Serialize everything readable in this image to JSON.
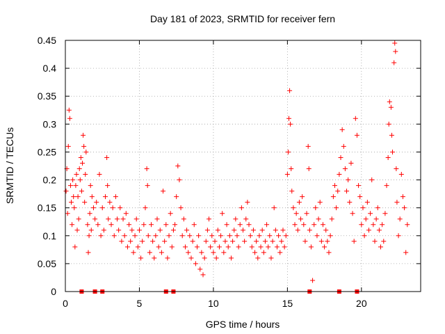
{
  "chart_data": {
    "type": "scatter",
    "title": "Day 181 of 2023, SRMTID for receiver fern",
    "xlabel": "GPS time / hours",
    "ylabel": "SRMTID / TECUs",
    "xlim": [
      0,
      24
    ],
    "ylim": [
      0,
      0.45
    ],
    "x_ticks": [
      {
        "value": 0,
        "label": "0"
      },
      {
        "value": 5,
        "label": "5"
      },
      {
        "value": 10,
        "label": "10"
      },
      {
        "value": 15,
        "label": "15"
      },
      {
        "value": 20,
        "label": "20"
      }
    ],
    "y_ticks": [
      {
        "value": 0,
        "label": "0"
      },
      {
        "value": 0.05,
        "label": "0.05"
      },
      {
        "value": 0.1,
        "label": "0.1"
      },
      {
        "value": 0.15,
        "label": "0.15"
      },
      {
        "value": 0.2,
        "label": "0.2"
      },
      {
        "value": 0.25,
        "label": "0.25"
      },
      {
        "value": 0.3,
        "label": "0.3"
      },
      {
        "value": 0.35,
        "label": "0.35"
      },
      {
        "value": 0.4,
        "label": "0.4"
      },
      {
        "value": 0.45,
        "label": "0.45"
      }
    ],
    "grid": true,
    "marker": "plus",
    "color": "#ff0000",
    "series": [
      {
        "name": "SRMTID",
        "points": [
          [
            0.05,
            0.18
          ],
          [
            0.1,
            0.22
          ],
          [
            0.15,
            0.14
          ],
          [
            0.2,
            0.26
          ],
          [
            0.25,
            0.325
          ],
          [
            0.3,
            0.31
          ],
          [
            0.35,
            0.19
          ],
          [
            0.4,
            0.16
          ],
          [
            0.45,
            0.12
          ],
          [
            0.5,
            0.2
          ],
          [
            0.55,
            0.17
          ],
          [
            0.6,
            0.15
          ],
          [
            0.65,
            0.08
          ],
          [
            0.7,
            0.19
          ],
          [
            0.75,
            0.21
          ],
          [
            0.8,
            0.11
          ],
          [
            0.85,
            0.17
          ],
          [
            0.9,
            0.13
          ],
          [
            0.95,
            0.22
          ],
          [
            1.0,
            0.2
          ],
          [
            1.05,
            0.24
          ],
          [
            1.1,
            0.18
          ],
          [
            1.15,
            0.23
          ],
          [
            1.2,
            0.28
          ],
          [
            1.25,
            0.26
          ],
          [
            1.3,
            0.16
          ],
          [
            1.35,
            0.21
          ],
          [
            1.4,
            0.25
          ],
          [
            1.5,
            0.12
          ],
          [
            1.55,
            0.07
          ],
          [
            1.6,
            0.1
          ],
          [
            1.65,
            0.14
          ],
          [
            1.7,
            0.19
          ],
          [
            1.75,
            0.11
          ],
          [
            1.8,
            0.17
          ],
          [
            1.9,
            0.15
          ],
          [
            2.0,
            0.13
          ],
          [
            2.1,
            0.16
          ],
          [
            2.2,
            0.12
          ],
          [
            2.3,
            0.21
          ],
          [
            2.4,
            0.1
          ],
          [
            2.5,
            0.15
          ],
          [
            2.6,
            0.11
          ],
          [
            2.7,
            0.17
          ],
          [
            2.8,
            0.24
          ],
          [
            2.85,
            0.19
          ],
          [
            2.9,
            0.13
          ],
          [
            3.0,
            0.16
          ],
          [
            3.1,
            0.12
          ],
          [
            3.2,
            0.15
          ],
          [
            3.3,
            0.1
          ],
          [
            3.4,
            0.17
          ],
          [
            3.5,
            0.13
          ],
          [
            3.6,
            0.11
          ],
          [
            3.7,
            0.15
          ],
          [
            3.8,
            0.09
          ],
          [
            3.9,
            0.13
          ],
          [
            4.0,
            0.1
          ],
          [
            4.1,
            0.14
          ],
          [
            4.2,
            0.08
          ],
          [
            4.3,
            0.12
          ],
          [
            4.4,
            0.09
          ],
          [
            4.5,
            0.11
          ],
          [
            4.6,
            0.07
          ],
          [
            4.7,
            0.1
          ],
          [
            4.8,
            0.13
          ],
          [
            4.9,
            0.08
          ],
          [
            5.0,
            0.11
          ],
          [
            5.1,
            0.06
          ],
          [
            5.2,
            0.09
          ],
          [
            5.3,
            0.12
          ],
          [
            5.4,
            0.15
          ],
          [
            5.5,
            0.22
          ],
          [
            5.55,
            0.19
          ],
          [
            5.6,
            0.1
          ],
          [
            5.7,
            0.07
          ],
          [
            5.8,
            0.12
          ],
          [
            5.9,
            0.09
          ],
          [
            6.0,
            0.06
          ],
          [
            6.1,
            0.1
          ],
          [
            6.2,
            0.13
          ],
          [
            6.3,
            0.08
          ],
          [
            6.4,
            0.11
          ],
          [
            6.5,
            0.07
          ],
          [
            6.6,
            0.18
          ],
          [
            6.7,
            0.09
          ],
          [
            6.8,
            0.12
          ],
          [
            6.9,
            0.06
          ],
          [
            7.0,
            0.1
          ],
          [
            7.1,
            0.14
          ],
          [
            7.2,
            0.08
          ],
          [
            7.3,
            0.11
          ],
          [
            7.4,
            0.12
          ],
          [
            7.5,
            0.17
          ],
          [
            7.6,
            0.225
          ],
          [
            7.7,
            0.2
          ],
          [
            7.8,
            0.15
          ],
          [
            7.9,
            0.1
          ],
          [
            8.0,
            0.13
          ],
          [
            8.1,
            0.08
          ],
          [
            8.2,
            0.11
          ],
          [
            8.3,
            0.07
          ],
          [
            8.4,
            0.1
          ],
          [
            8.5,
            0.06
          ],
          [
            8.6,
            0.09
          ],
          [
            8.7,
            0.12
          ],
          [
            8.8,
            0.05
          ],
          [
            8.9,
            0.08
          ],
          [
            9.0,
            0.1
          ],
          [
            9.1,
            0.04
          ],
          [
            9.2,
            0.07
          ],
          [
            9.3,
            0.03
          ],
          [
            9.4,
            0.06
          ],
          [
            9.5,
            0.09
          ],
          [
            9.6,
            0.11
          ],
          [
            9.7,
            0.13
          ],
          [
            9.8,
            0.08
          ],
          [
            9.9,
            0.1
          ],
          [
            10.0,
            0.07
          ],
          [
            10.1,
            0.09
          ],
          [
            10.2,
            0.06
          ],
          [
            10.3,
            0.11
          ],
          [
            10.4,
            0.08
          ],
          [
            10.5,
            0.1
          ],
          [
            10.6,
            0.14
          ],
          [
            10.7,
            0.07
          ],
          [
            10.8,
            0.09
          ],
          [
            10.9,
            0.12
          ],
          [
            11.0,
            0.08
          ],
          [
            11.1,
            0.1
          ],
          [
            11.2,
            0.06
          ],
          [
            11.3,
            0.09
          ],
          [
            11.4,
            0.11
          ],
          [
            11.5,
            0.13
          ],
          [
            11.6,
            0.1
          ],
          [
            11.7,
            0.08
          ],
          [
            11.8,
            0.12
          ],
          [
            11.9,
            0.15
          ],
          [
            12.0,
            0.11
          ],
          [
            12.1,
            0.09
          ],
          [
            12.2,
            0.13
          ],
          [
            12.3,
            0.16
          ],
          [
            12.4,
            0.12
          ],
          [
            12.5,
            0.1
          ],
          [
            12.6,
            0.08
          ],
          [
            12.7,
            0.11
          ],
          [
            12.8,
            0.07
          ],
          [
            12.9,
            0.09
          ],
          [
            13.0,
            0.06
          ],
          [
            13.1,
            0.1
          ],
          [
            13.2,
            0.08
          ],
          [
            13.3,
            0.11
          ],
          [
            13.4,
            0.07
          ],
          [
            13.5,
            0.09
          ],
          [
            13.6,
            0.12
          ],
          [
            13.7,
            0.08
          ],
          [
            13.8,
            0.1
          ],
          [
            13.9,
            0.06
          ],
          [
            14.0,
            0.09
          ],
          [
            14.1,
            0.15
          ],
          [
            14.2,
            0.11
          ],
          [
            14.3,
            0.08
          ],
          [
            14.4,
            0.1
          ],
          [
            14.5,
            0.07
          ],
          [
            14.6,
            0.09
          ],
          [
            14.7,
            0.11
          ],
          [
            14.8,
            0.08
          ],
          [
            14.9,
            0.1
          ],
          [
            15.0,
            0.21
          ],
          [
            15.05,
            0.25
          ],
          [
            15.1,
            0.31
          ],
          [
            15.15,
            0.36
          ],
          [
            15.2,
            0.3
          ],
          [
            15.25,
            0.22
          ],
          [
            15.3,
            0.18
          ],
          [
            15.4,
            0.15
          ],
          [
            15.5,
            0.12
          ],
          [
            15.6,
            0.14
          ],
          [
            15.7,
            0.11
          ],
          [
            15.8,
            0.16
          ],
          [
            15.9,
            0.13
          ],
          [
            16.0,
            0.17
          ],
          [
            16.1,
            0.12
          ],
          [
            16.2,
            0.09
          ],
          [
            16.3,
            0.14
          ],
          [
            16.4,
            0.26
          ],
          [
            16.45,
            0.22
          ],
          [
            16.5,
            0.11
          ],
          [
            16.6,
            0.08
          ],
          [
            16.7,
            0.02
          ],
          [
            16.8,
            0.12
          ],
          [
            16.9,
            0.15
          ],
          [
            17.0,
            0.1
          ],
          [
            17.1,
            0.13
          ],
          [
            17.2,
            0.16
          ],
          [
            17.3,
            0.09
          ],
          [
            17.4,
            0.12
          ],
          [
            17.5,
            0.08
          ],
          [
            17.6,
            0.11
          ],
          [
            17.7,
            0.09
          ],
          [
            17.8,
            0.07
          ],
          [
            17.9,
            0.1
          ],
          [
            18.0,
            0.13
          ],
          [
            18.1,
            0.17
          ],
          [
            18.2,
            0.19
          ],
          [
            18.3,
            0.15
          ],
          [
            18.4,
            0.18
          ],
          [
            18.5,
            0.21
          ],
          [
            18.6,
            0.24
          ],
          [
            18.7,
            0.29
          ],
          [
            18.8,
            0.26
          ],
          [
            18.9,
            0.22
          ],
          [
            19.0,
            0.18
          ],
          [
            19.1,
            0.2
          ],
          [
            19.2,
            0.16
          ],
          [
            19.3,
            0.23
          ],
          [
            19.4,
            0.14
          ],
          [
            19.5,
            0.09
          ],
          [
            19.6,
            0.31
          ],
          [
            19.7,
            0.28
          ],
          [
            19.8,
            0.19
          ],
          [
            19.9,
            0.17
          ],
          [
            20.0,
            0.12
          ],
          [
            20.1,
            0.15
          ],
          [
            20.2,
            0.1
          ],
          [
            20.3,
            0.13
          ],
          [
            20.4,
            0.16
          ],
          [
            20.5,
            0.11
          ],
          [
            20.6,
            0.14
          ],
          [
            20.7,
            0.2
          ],
          [
            20.8,
            0.12
          ],
          [
            20.9,
            0.09
          ],
          [
            21.0,
            0.13
          ],
          [
            21.1,
            0.15
          ],
          [
            21.2,
            0.11
          ],
          [
            21.3,
            0.08
          ],
          [
            21.4,
            0.12
          ],
          [
            21.5,
            0.09
          ],
          [
            21.6,
            0.14
          ],
          [
            21.7,
            0.19
          ],
          [
            21.8,
            0.24
          ],
          [
            21.85,
            0.3
          ],
          [
            21.9,
            0.34
          ],
          [
            22.0,
            0.33
          ],
          [
            22.05,
            0.28
          ],
          [
            22.1,
            0.25
          ],
          [
            22.2,
            0.41
          ],
          [
            22.25,
            0.445
          ],
          [
            22.3,
            0.43
          ],
          [
            22.35,
            0.22
          ],
          [
            22.4,
            0.16
          ],
          [
            22.5,
            0.1
          ],
          [
            22.6,
            0.13
          ],
          [
            22.7,
            0.21
          ],
          [
            22.8,
            0.17
          ],
          [
            22.9,
            0.15
          ],
          [
            23.0,
            0.07
          ],
          [
            23.1,
            0.12
          ]
        ]
      }
    ],
    "zero_markers_x": [
      1.1,
      2.0,
      2.5,
      6.8,
      7.3,
      16.5,
      18.5,
      19.7
    ]
  }
}
